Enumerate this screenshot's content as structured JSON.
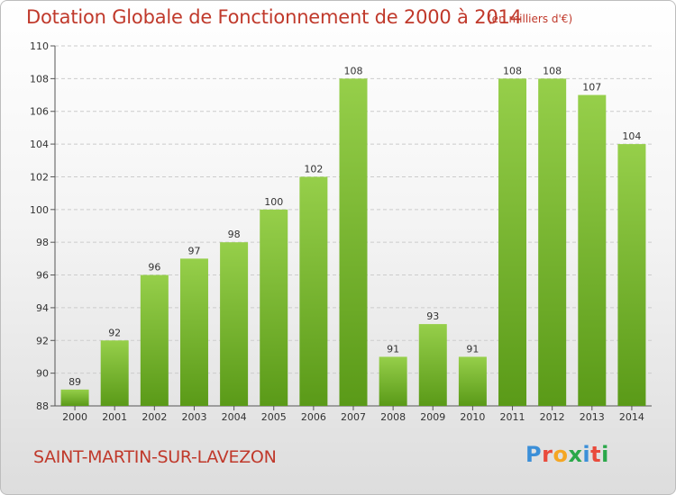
{
  "header": {
    "title": "Dotation Globale de Fonctionnement de 2000 à 2014",
    "unit": "(en milliers d'€)"
  },
  "footer": {
    "commune": "SAINT-MARTIN-SUR-LAVEZON",
    "logo_letters": [
      "P",
      "r",
      "o",
      "x",
      "i",
      "t",
      "i"
    ],
    "logo_colors": [
      "#3b8fd8",
      "#e94b3c",
      "#f5a623",
      "#2aa84a",
      "#3b8fd8",
      "#e94b3c",
      "#2aa84a"
    ]
  },
  "colors": {
    "title": "#c0392b",
    "bar_top": "#96cf4a",
    "bar_bottom": "#5a9a18",
    "grid": "#cccccc"
  },
  "chart_data": {
    "type": "bar",
    "title": "Dotation Globale de Fonctionnement de 2000 à 2014",
    "subtitle": "(en milliers d'€)",
    "categories": [
      "2000",
      "2001",
      "2002",
      "2003",
      "2004",
      "2005",
      "2006",
      "2007",
      "2008",
      "2009",
      "2010",
      "2011",
      "2012",
      "2013",
      "2014"
    ],
    "values": [
      89,
      92,
      96,
      97,
      98,
      100,
      102,
      108,
      91,
      93,
      91,
      108,
      108,
      107,
      104
    ],
    "ylim": [
      88,
      110
    ],
    "yticks": [
      88,
      90,
      92,
      94,
      96,
      98,
      100,
      102,
      104,
      106,
      108,
      110
    ],
    "grid": true,
    "xlabel": "",
    "ylabel": ""
  }
}
